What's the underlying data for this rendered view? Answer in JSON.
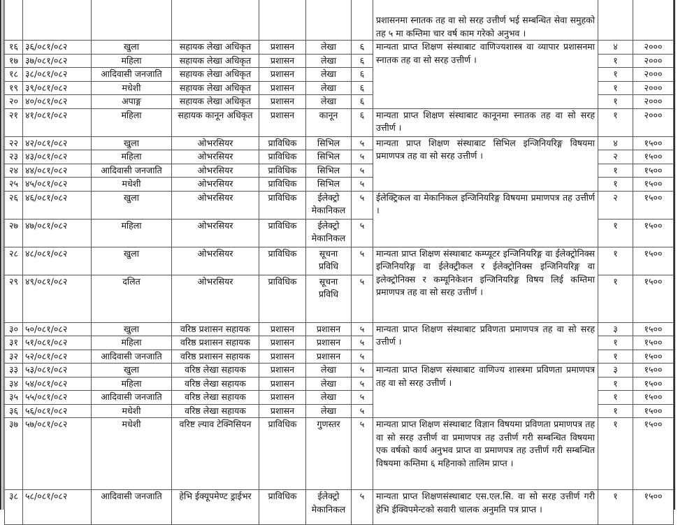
{
  "rows": [
    {
      "sn": "",
      "code": "",
      "group": "",
      "post": "",
      "service": "",
      "subgroup": "",
      "level": "",
      "count": "",
      "fee": ""
    },
    {
      "sn": "१६",
      "code": "३६/०८१/०८२",
      "group": "खुला",
      "post": "सहायक लेखा अधिकृत",
      "service": "प्रशासन",
      "subgroup": "लेखा",
      "level": "६",
      "count": "४",
      "fee": "२०००"
    },
    {
      "sn": "१७",
      "code": "३७/०८१/०८२",
      "group": "महिला",
      "post": "सहायक लेखा अधिकृत",
      "service": "प्रशासन",
      "subgroup": "लेखा",
      "level": "६",
      "count": "१",
      "fee": "२०००"
    },
    {
      "sn": "१८",
      "code": "३८/०८१/०८२",
      "group": "आदिवासी जनजाति",
      "post": "सहायक लेखा अधिकृत",
      "service": "प्रशासन",
      "subgroup": "लेखा",
      "level": "६",
      "count": "१",
      "fee": "२०००"
    },
    {
      "sn": "१९",
      "code": "३९/०८१/०८२",
      "group": "मधेशी",
      "post": "सहायक लेखा अधिकृत",
      "service": "प्रशासन",
      "subgroup": "लेखा",
      "level": "६",
      "count": "१",
      "fee": "२०००"
    },
    {
      "sn": "२०",
      "code": "४०/०८१/०८२",
      "group": "अपाङ्ग",
      "post": "सहायक लेखा अधिकृत",
      "service": "प्रशासन",
      "subgroup": "लेखा",
      "level": "६",
      "count": "१",
      "fee": "२०००"
    },
    {
      "sn": "२१",
      "code": "४१/०८१/०८२",
      "group": "महिला",
      "post": "सहायक कानून अधिकृत",
      "service": "प्रशासन",
      "subgroup": "कानून",
      "level": "६",
      "count": "१",
      "fee": "२०००"
    },
    {
      "sn": "२२",
      "code": "४२/०८१/०८२",
      "group": "खुला",
      "post": "ओभरसियर",
      "service": "प्राविधिक",
      "subgroup": "सिभिल",
      "level": "५",
      "count": "४",
      "fee": "१५००"
    },
    {
      "sn": "२३",
      "code": "४३/०८१/०८२",
      "group": "महिला",
      "post": "ओभरसियर",
      "service": "प्राविधिक",
      "subgroup": "सिभिल",
      "level": "५",
      "count": "२",
      "fee": "१५००"
    },
    {
      "sn": "२४",
      "code": "४४/०८१/०८२",
      "group": "आदिवासी जनजाति",
      "post": "ओभरसियर",
      "service": "प्राविधिक",
      "subgroup": "सिभिल",
      "level": "५",
      "count": "१",
      "fee": "१५००"
    },
    {
      "sn": "२५",
      "code": "४५/०८१/०८२",
      "group": "मधेशी",
      "post": "ओभरसियर",
      "service": "प्राविधिक",
      "subgroup": "सिभिल",
      "level": "५",
      "count": "१",
      "fee": "१५००"
    },
    {
      "sn": "२६",
      "code": "४६/०८१/०८२",
      "group": "खुला",
      "post": "ओभरसियर",
      "service": "प्राविधिक",
      "subgroup": "ईलेक्ट्रो मेकानिकल",
      "level": "५",
      "count": "२",
      "fee": "१५००"
    },
    {
      "sn": "२७",
      "code": "४७/०८१/०८२",
      "group": "महिला",
      "post": "ओभरसियर",
      "service": "प्राविधिक",
      "subgroup": "ईलेक्ट्रो मेकानिकल",
      "level": "५",
      "count": "१",
      "fee": "१५००"
    },
    {
      "sn": "२८",
      "code": "४८/०८१/०८२",
      "group": "खुला",
      "post": "ओभरसियर",
      "service": "प्राविधिक",
      "subgroup": "सूचना प्रविधि",
      "level": "५",
      "count": "१",
      "fee": "१५००"
    },
    {
      "sn": "२९",
      "code": "४९/०८१/०८२",
      "group": "दलित",
      "post": "ओभरसियर",
      "service": "प्राविधिक",
      "subgroup": "सूचना प्रविधि",
      "level": "५",
      "count": "१",
      "fee": "१५००"
    },
    {
      "sn": "३०",
      "code": "५०/०८१/०८२",
      "group": "खुला",
      "post": "वरिष्ठ प्रशासन सहायक",
      "service": "प्रशासन",
      "subgroup": "प्रशासन",
      "level": "५",
      "count": "३",
      "fee": "१५००"
    },
    {
      "sn": "३१",
      "code": "५१/०८१/०८२",
      "group": "महिला",
      "post": "वरिष्ठ प्रशासन सहायक",
      "service": "प्रशासन",
      "subgroup": "प्रशासन",
      "level": "५",
      "count": "१",
      "fee": "१५००"
    },
    {
      "sn": "३२",
      "code": "५२/०८१/०८२",
      "group": "आदिवासी जनजाति",
      "post": "वरिष्ठ प्रशासन सहायक",
      "service": "प्रशासन",
      "subgroup": "प्रशासन",
      "level": "५",
      "count": "१",
      "fee": "१५००"
    },
    {
      "sn": "३३",
      "code": "५३/०८१/०८२",
      "group": "खुला",
      "post": "वरिष्ठ लेखा सहायक",
      "service": "प्रशासन",
      "subgroup": "लेखा",
      "level": "५",
      "count": "३",
      "fee": "१५००"
    },
    {
      "sn": "३४",
      "code": "५४/०८१/०८२",
      "group": "महिला",
      "post": "वरिष्ठ लेखा सहायक",
      "service": "प्रशासन",
      "subgroup": "लेखा",
      "level": "५",
      "count": "१",
      "fee": "१५००"
    },
    {
      "sn": "३५",
      "code": "५५/०८१/०८२",
      "group": "आदिवासी जनजाति",
      "post": "वरिष्ठ लेखा सहायक",
      "service": "प्रशासन",
      "subgroup": "लेखा",
      "level": "५",
      "count": "१",
      "fee": "१५००"
    },
    {
      "sn": "३६",
      "code": "५६/०८१/०८२",
      "group": "मधेशी",
      "post": "वरिष्ठ लेखा सहायक",
      "service": "प्रशासन",
      "subgroup": "लेखा",
      "level": "५",
      "count": "१",
      "fee": "१५००"
    },
    {
      "sn": "३७",
      "code": "५७/०८१/०८२",
      "group": "मधेशी",
      "post": "वरिष्ट ल्याव टेक्निसियन",
      "service": "प्राविधिक",
      "subgroup": "गुणस्तर",
      "level": "५",
      "count": "१",
      "fee": "१५००"
    },
    {
      "sn": "३८",
      "code": "५८/०८१/०८२",
      "group": "आदिवासी जनजाति",
      "post": "हेभि ईक्यूपमेण्ट ड्राईभर",
      "service": "प्राविधिक",
      "subgroup": "ईलेक्ट्रो मेकानिकल",
      "level": "५",
      "count": "१",
      "fee": "१५००"
    }
  ],
  "qualifications": [
    "प्रशासनमा स्नातक तह वा सो सरह उत्तीर्ण भई सम्बन्धित सेवा समुहको तह ५ मा कम्तिमा चार वर्ष काम गरेको अनुभव ।",
    "मान्यता प्राप्त शिक्षण संस्थाबाट वाणिज्यशास्त्र वा व्यापार प्रशासनमा स्नातक तह वा सो सरह उत्तीर्ण ।",
    "मान्यता प्राप्त शिक्षण संस्थाबाट कानूनमा स्नातक तह वा सो सरह उत्तीर्ण ।",
    "मान्यता प्राप्त शिक्षण संस्थाबाट सिभिल इन्जिनियरिङ्ग विषयमा प्रमाणपत्र तह वा सो सरह उत्तीर्ण ।",
    "ईलेक्ट्रिकल वा मेकानिकल इन्जिनियरिङ्ग विषयमा प्रमाणपत्र तह उत्तीर्ण ।",
    "मान्यता प्राप्त शिक्षण संस्थाबाट कम्प्यूटर इन्जिनियरिङ्ग वा ईलेक्ट्रोनिक्स इन्जिनियरिङ्ग वा ईलेक्ट्रीकल र ईलेक्ट्रोनिक्स इन्जिनियरिङ्ग वा इलेक्ट्रोनिक्स र कम्यूनिकेशन इन्जिनियरिङ्ग विषय लिई कम्तिमा प्रमाणपत्र तह वा सो सरह उत्तीर्ण ।",
    "मान्यता प्राप्त शिक्षण संस्थाबाट प्रविणता प्रमाणपत्र तह वा सो सरह उत्तीर्ण ।",
    "मान्यता प्राप्त शिक्षण संस्थाबाट वाणिज्य शास्त्रमा प्रविणता प्रमाणपत्र तह वा सो सरह उत्तीर्ण ।",
    "मान्यता प्राप्त शिक्षण संस्थाबाट विज्ञान विषयमा प्रविणता प्रमाणपत्र तह वा सो सरह उत्तीर्ण वा प्रमाणपत्र तह उत्तीर्ण गरी सम्बन्धित विषयमा एक वर्षको कार्य अनुभव प्राप्त वा प्रमाणपत्र तह उत्तीर्ण गरी सम्बन्धित विषयमा कम्तिमा ६ महिनाको तालिम प्राप्त ।",
    "मान्यता प्राप्त शिक्षणसंस्थाबाट एस.एल.सि. वा सो सरह उत्तीर्ण गरी हेभि ईक्विपमेन्टको सवारी चालक अनुमति पत्र प्राप्त ।"
  ]
}
